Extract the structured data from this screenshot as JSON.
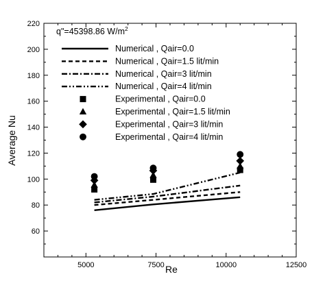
{
  "chart_data": {
    "type": "line",
    "title": "",
    "annotation": "q\"=45398.86 W/m",
    "annotation_superscript": "2",
    "xlabel": "Re",
    "ylabel": "Average Nu",
    "xlim": [
      3500,
      12500
    ],
    "ylim": [
      40,
      220
    ],
    "xticks": [
      5000,
      7500,
      10000,
      12500
    ],
    "yticks": [
      60,
      80,
      100,
      120,
      140,
      160,
      180,
      200,
      220
    ],
    "grid": false,
    "legend_position": "top-left",
    "series": [
      {
        "name": "Numerical , Qair=0.0",
        "kind": "line",
        "dash": "solid",
        "x": [
          5300,
          7400,
          10500
        ],
        "y": [
          76,
          80.5,
          86
        ]
      },
      {
        "name": "Numerical , Qair=1.5 lit/min",
        "kind": "line",
        "dash": "dash",
        "x": [
          5300,
          7400,
          10500
        ],
        "y": [
          80,
          84,
          90
        ]
      },
      {
        "name": "Numerical , Qair=3 lit/min",
        "kind": "line",
        "dash": "dashdot",
        "x": [
          5300,
          7400,
          10500
        ],
        "y": [
          82,
          86.5,
          95
        ]
      },
      {
        "name": "Numerical , Qair=4 lit/min",
        "kind": "line",
        "dash": "dashdotdot",
        "x": [
          5300,
          7400,
          10500
        ],
        "y": [
          84,
          88.5,
          105
        ]
      },
      {
        "name": "Experimental , Qair=0.0",
        "kind": "marker",
        "marker": "square",
        "x": [
          5300,
          7400,
          10500
        ],
        "y": [
          92,
          99.5,
          107
        ]
      },
      {
        "name": "Experimental , Qair=1.5 lit/min",
        "kind": "marker",
        "marker": "triangle",
        "x": [
          5300,
          7400,
          10500
        ],
        "y": [
          95.5,
          103,
          110
        ]
      },
      {
        "name": "Experimental , Qair=3 lit/min",
        "kind": "marker",
        "marker": "diamond",
        "x": [
          5300,
          7400,
          10500
        ],
        "y": [
          99,
          106.5,
          114
        ]
      },
      {
        "name": "Experimental , Qair=4 lit/min",
        "kind": "marker",
        "marker": "circle",
        "x": [
          5300,
          7400,
          10500
        ],
        "y": [
          102,
          108.5,
          119
        ]
      }
    ]
  }
}
